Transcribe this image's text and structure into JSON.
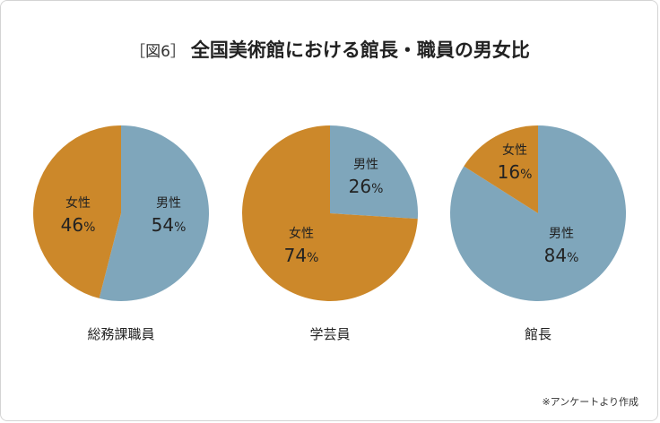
{
  "title": {
    "figure_label": "［図6］",
    "text": "全国美術館における館長・職員の男女比"
  },
  "source": "※アンケートより作成",
  "colors": {
    "male": "#7fa6bb",
    "female": "#cc882a"
  },
  "chart_data": [
    {
      "type": "pie",
      "category": "総務課職員",
      "slices": [
        {
          "label": "男性",
          "value": 54,
          "unit": "%"
        },
        {
          "label": "女性",
          "value": 46,
          "unit": "%"
        }
      ]
    },
    {
      "type": "pie",
      "category": "学芸員",
      "slices": [
        {
          "label": "男性",
          "value": 26,
          "unit": "%"
        },
        {
          "label": "女性",
          "value": 74,
          "unit": "%"
        }
      ]
    },
    {
      "type": "pie",
      "category": "館長",
      "slices": [
        {
          "label": "男性",
          "value": 84,
          "unit": "%"
        },
        {
          "label": "女性",
          "value": 16,
          "unit": "%"
        }
      ]
    }
  ]
}
